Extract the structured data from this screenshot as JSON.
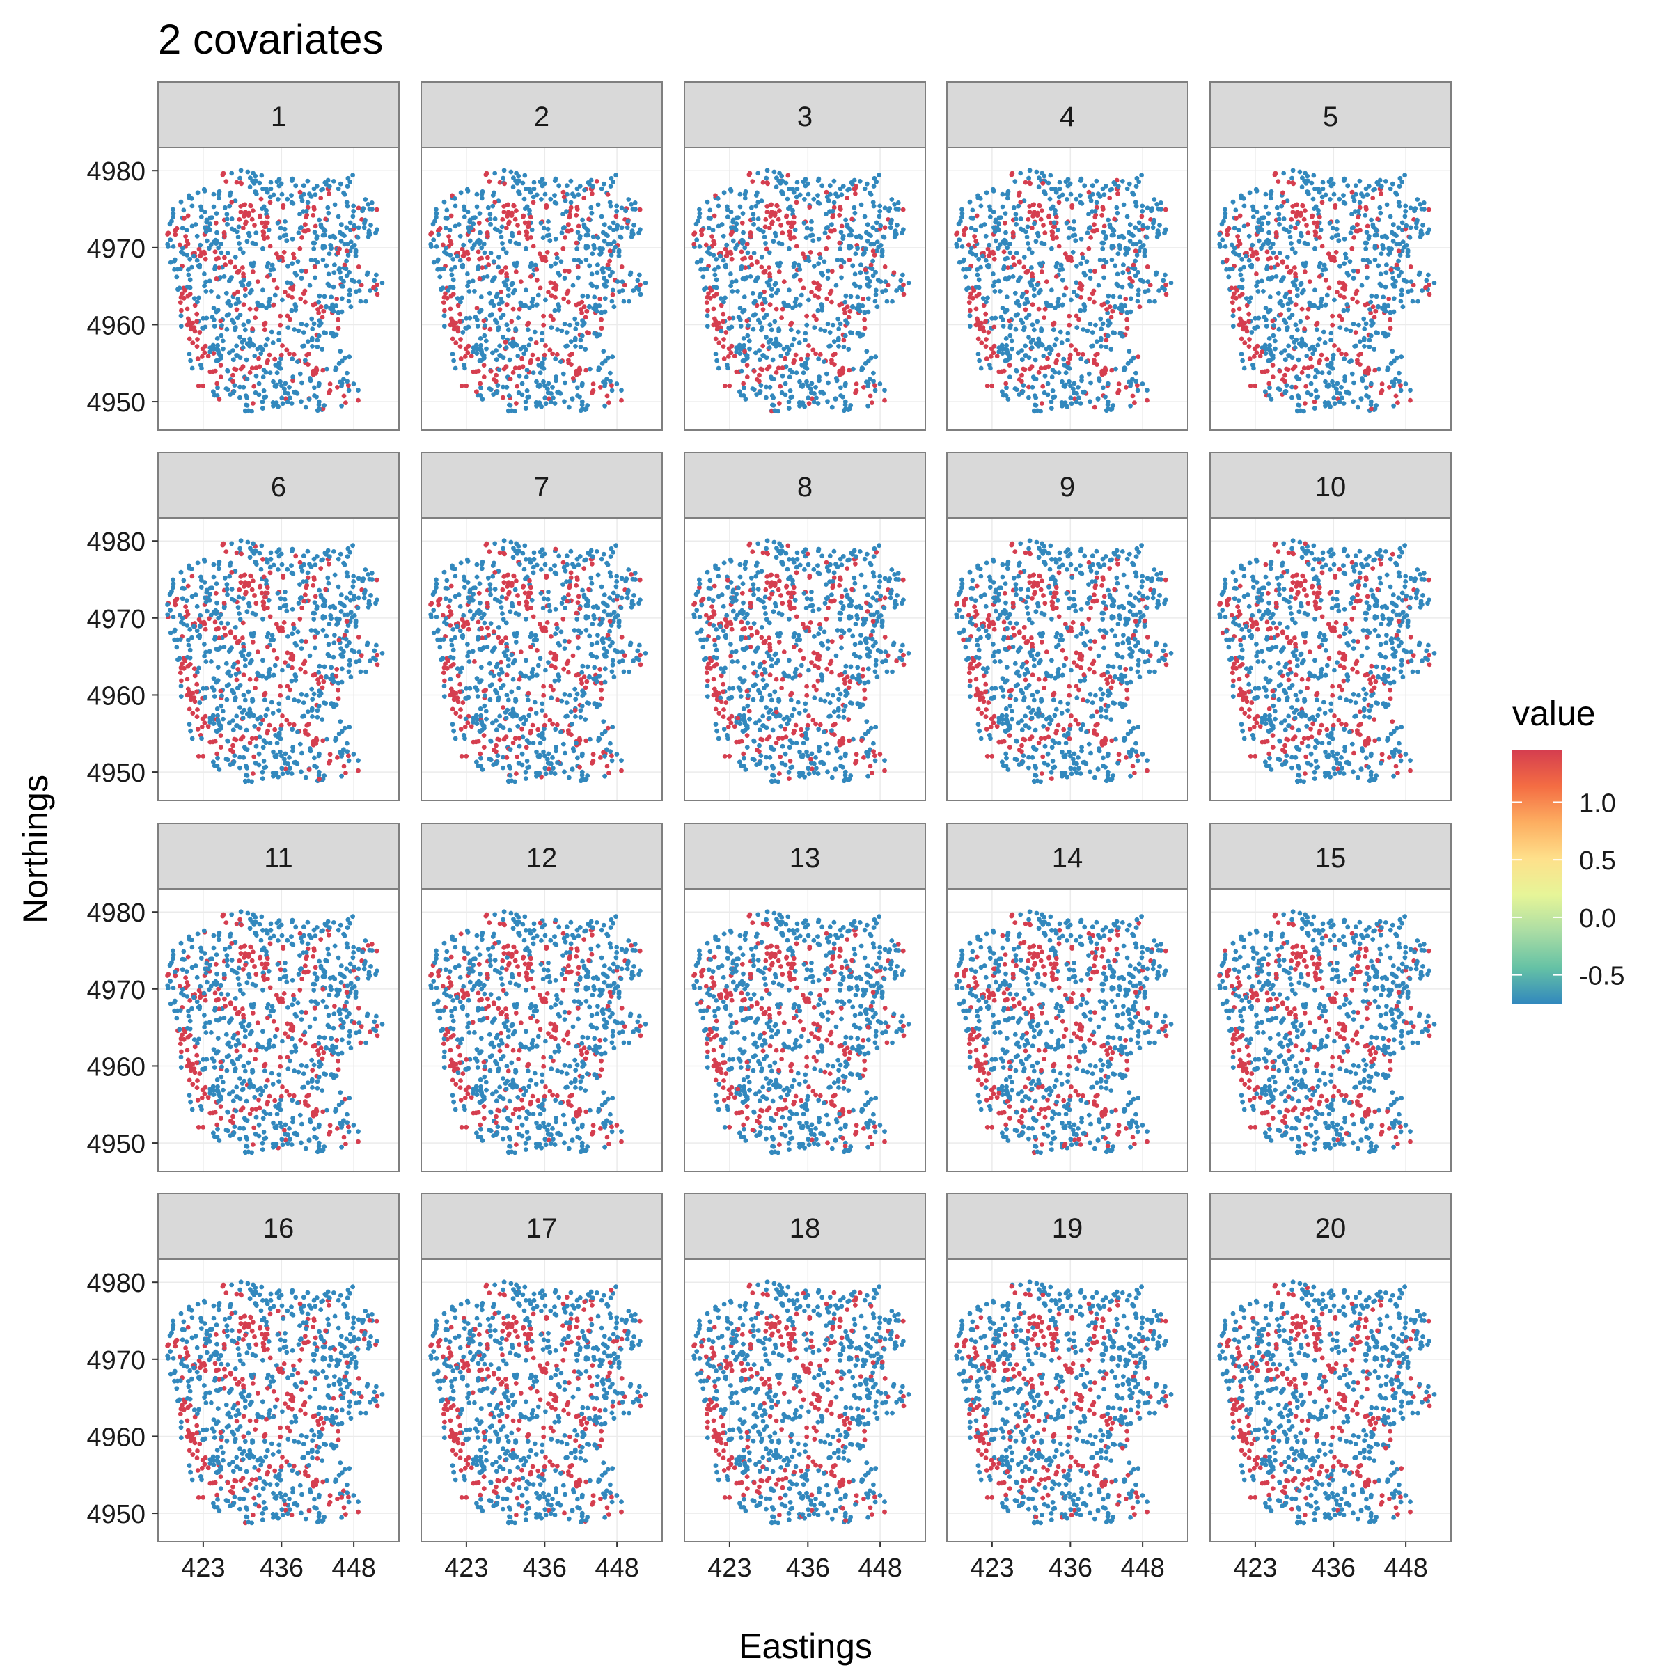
{
  "chart_data": {
    "type": "scatter",
    "title": "2 covariates",
    "xlabel": "Eastings",
    "ylabel": "Northings",
    "facet_labels": [
      "1",
      "2",
      "3",
      "4",
      "5",
      "6",
      "7",
      "8",
      "9",
      "10",
      "11",
      "12",
      "13",
      "14",
      "15",
      "16",
      "17",
      "18",
      "19",
      "20"
    ],
    "x_ticks": [
      423,
      436,
      448
    ],
    "x_tick_labels": [
      "423",
      "436",
      "448"
    ],
    "y_ticks": [
      4950,
      4960,
      4970,
      4980
    ],
    "y_tick_labels": [
      "4950",
      "4960",
      "4970",
      "4980"
    ],
    "xlim": [
      415.5,
      455.5
    ],
    "ylim": [
      4946.3,
      4983.0
    ],
    "grid": true,
    "legend": {
      "title": "value",
      "position": "right",
      "breaks": [
        1.0,
        0.5,
        0.0,
        -0.5
      ],
      "break_labels": [
        "1.0",
        "0.5",
        "0.0",
        "-0.5"
      ],
      "range": [
        -0.75,
        1.45
      ],
      "palette": [
        "#3288bd",
        "#66c2a5",
        "#abdda4",
        "#e6f598",
        "#fee08b",
        "#fdae61",
        "#f46d43",
        "#d53e4f"
      ]
    },
    "point_colors": {
      "low": "#3288bd",
      "high": "#d53e4f"
    },
    "point_value_levels": {
      "low": -0.6,
      "high": 1.4
    }
  }
}
